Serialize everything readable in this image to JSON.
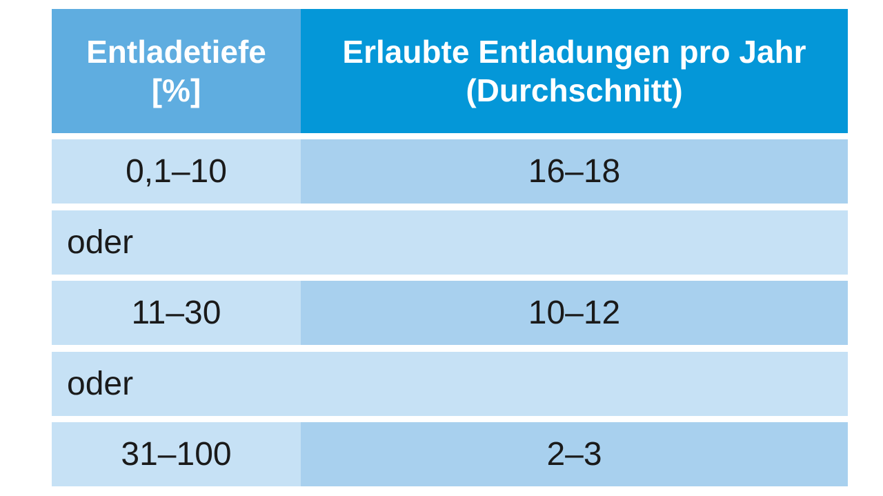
{
  "header": {
    "col1_line1": "Entladetiefe",
    "col1_line2": "[%]",
    "col2_line1": "Erlaubte Entladungen pro Jahr",
    "col2_line2": "(Durchschnitt)"
  },
  "rows": [
    {
      "depth": "0,1–10",
      "discharges": "16–18"
    },
    {
      "separator": "oder"
    },
    {
      "depth": "11–30",
      "discharges": "10–12"
    },
    {
      "separator": "oder"
    },
    {
      "depth": "31–100",
      "discharges": "2–3"
    }
  ],
  "colors": {
    "header_col1": "#5fade0",
    "header_col2": "#0497d8",
    "row_light": "#c6e1f5",
    "row_dark": "#a8d0ee"
  }
}
